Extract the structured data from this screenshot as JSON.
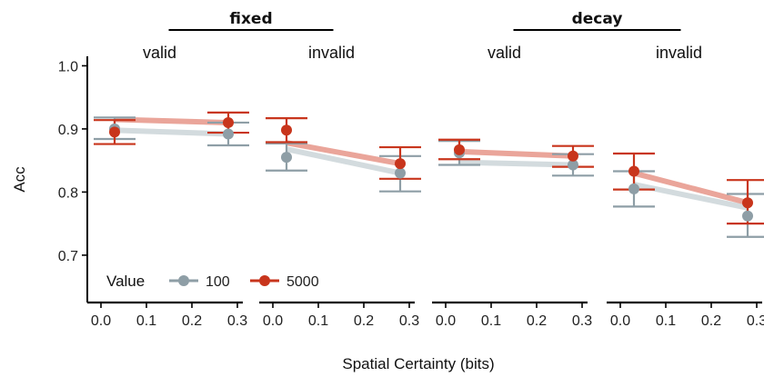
{
  "chart_data": {
    "type": "line",
    "xlabel": "Spatial Certainty (bits)",
    "ylabel": "Acc",
    "xlim": [
      -0.03,
      0.32
    ],
    "ylim": [
      0.625,
      1.015
    ],
    "x_ticks": [
      0.0,
      0.1,
      0.2,
      0.3
    ],
    "x_tick_labels": [
      "0.0",
      "0.1",
      "0.2",
      "0.3"
    ],
    "y_ticks": [
      0.7,
      0.8,
      0.9,
      1.0
    ],
    "y_tick_labels": [
      "0.7",
      "0.8",
      "0.9",
      "1.0"
    ],
    "grid": false,
    "legend": {
      "title": "Value",
      "position": "bottom-left",
      "items": [
        {
          "label": "100",
          "color": "#8e9ea6"
        },
        {
          "label": "5000",
          "color": "#c8351c"
        }
      ]
    },
    "groups": [
      {
        "title": "fixed",
        "panels": [
          0,
          1
        ]
      },
      {
        "title": "decay",
        "panels": [
          2,
          3
        ]
      }
    ],
    "panels": [
      {
        "title": "valid",
        "series": [
          {
            "name": "100",
            "color": "#8e9ea6",
            "line_color": "#d3dbde",
            "x": [
              0.03,
              0.28
            ],
            "points": [
              0.9,
              0.892
            ],
            "line": [
              0.898,
              0.892
            ],
            "err_low": [
              0.884,
              0.874
            ],
            "err_high": [
              0.918,
              0.91
            ]
          },
          {
            "name": "5000",
            "color": "#c8351c",
            "line_color": "#eaa59a",
            "x": [
              0.03,
              0.28
            ],
            "points": [
              0.895,
              0.91
            ],
            "line": [
              0.915,
              0.91
            ],
            "err_low": [
              0.876,
              0.894
            ],
            "err_high": [
              0.914,
              0.926
            ]
          }
        ]
      },
      {
        "title": "invalid",
        "series": [
          {
            "name": "100",
            "color": "#8e9ea6",
            "line_color": "#d3dbde",
            "x": [
              0.03,
              0.28
            ],
            "points": [
              0.855,
              0.83
            ],
            "line": [
              0.868,
              0.83
            ],
            "err_low": [
              0.834,
              0.801
            ],
            "err_high": [
              0.877,
              0.857
            ]
          },
          {
            "name": "5000",
            "color": "#c8351c",
            "line_color": "#eaa59a",
            "x": [
              0.03,
              0.28
            ],
            "points": [
              0.898,
              0.845
            ],
            "line": [
              0.878,
              0.845
            ],
            "err_low": [
              0.879,
              0.821
            ],
            "err_high": [
              0.917,
              0.871
            ]
          }
        ]
      },
      {
        "title": "valid",
        "series": [
          {
            "name": "100",
            "color": "#8e9ea6",
            "line_color": "#d3dbde",
            "x": [
              0.03,
              0.28
            ],
            "points": [
              0.862,
              0.843
            ],
            "line": [
              0.847,
              0.843
            ],
            "err_low": [
              0.843,
              0.826
            ],
            "err_high": [
              0.881,
              0.86
            ]
          },
          {
            "name": "5000",
            "color": "#c8351c",
            "line_color": "#eaa59a",
            "x": [
              0.03,
              0.28
            ],
            "points": [
              0.867,
              0.857
            ],
            "line": [
              0.864,
              0.857
            ],
            "err_low": [
              0.852,
              0.84
            ],
            "err_high": [
              0.883,
              0.873
            ]
          }
        ]
      },
      {
        "title": "invalid",
        "series": [
          {
            "name": "100",
            "color": "#8e9ea6",
            "line_color": "#d3dbde",
            "x": [
              0.03,
              0.28
            ],
            "points": [
              0.805,
              0.762
            ],
            "line": [
              0.812,
              0.775
            ],
            "err_low": [
              0.777,
              0.729
            ],
            "err_high": [
              0.833,
              0.797
            ]
          },
          {
            "name": "5000",
            "color": "#c8351c",
            "line_color": "#eaa59a",
            "x": [
              0.03,
              0.28
            ],
            "points": [
              0.833,
              0.783
            ],
            "line": [
              0.83,
              0.783
            ],
            "err_low": [
              0.804,
              0.75
            ],
            "err_high": [
              0.861,
              0.819
            ]
          }
        ]
      }
    ]
  }
}
